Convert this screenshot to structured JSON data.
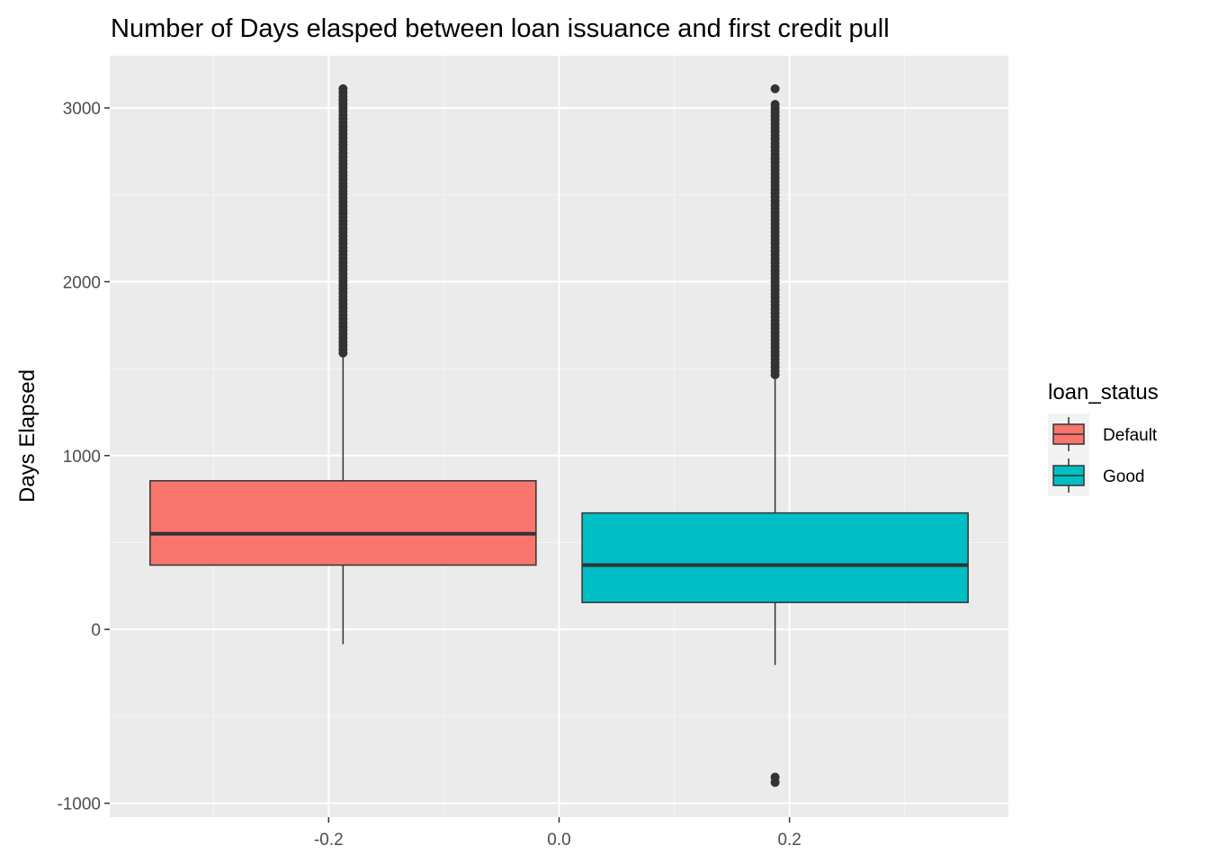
{
  "chart_data": {
    "type": "boxplot",
    "title": "Number of Days elasped between loan issuance and first credit pull",
    "xlabel": "",
    "ylabel": "Days Elapsed",
    "xlim": [
      -0.39,
      0.39
    ],
    "ylim": [
      -1080,
      3300
    ],
    "x_ticks": [
      -0.2,
      0.0,
      0.2
    ],
    "x_tick_labels": [
      "-0.2",
      "0.0",
      "0.2"
    ],
    "y_ticks": [
      -1000,
      0,
      1000,
      2000,
      3000
    ],
    "y_tick_labels": [
      "-1000",
      "0",
      "1000",
      "2000",
      "3000"
    ],
    "grid": true,
    "legend": {
      "title": "loan_status",
      "position": "right",
      "entries": [
        {
          "label": "Default",
          "color": "#F8766D"
        },
        {
          "label": "Good",
          "color": "#00BFC4"
        }
      ]
    },
    "series": [
      {
        "name": "Default",
        "color": "#F8766D",
        "x_center": -0.1875,
        "x_min": -0.355,
        "x_max": -0.02,
        "whisker_low": -85,
        "q1": 370,
        "median": 550,
        "q3": 855,
        "whisker_high": 1580,
        "outliers_low": [],
        "outliers_high_range": [
          1590,
          3110
        ]
      },
      {
        "name": "Good",
        "color": "#00BFC4",
        "x_center": 0.1875,
        "x_min": 0.02,
        "x_max": 0.355,
        "whisker_low": -205,
        "q1": 155,
        "median": 370,
        "q3": 670,
        "whisker_high": 1460,
        "outliers_low": [
          -850,
          -880
        ],
        "outliers_high_range": [
          1465,
          3020
        ],
        "outliers_high_extra": [
          3110
        ]
      }
    ]
  }
}
